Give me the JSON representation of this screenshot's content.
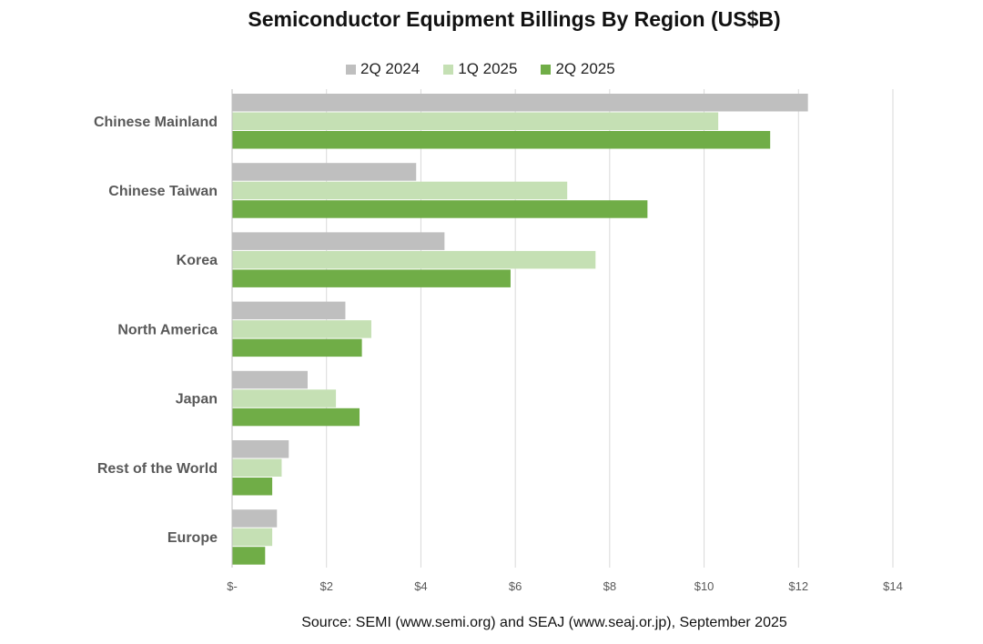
{
  "chart_data": {
    "type": "bar",
    "orientation": "horizontal",
    "title": "Semiconductor Equipment Billings By Region (US$B)",
    "categories": [
      "Chinese Mainland",
      "Chinese Taiwan",
      "Korea",
      "North America",
      "Japan",
      "Rest of the World",
      "Europe"
    ],
    "series": [
      {
        "name": "2Q 2024",
        "color": "#bfbfbf",
        "values": [
          12.2,
          3.9,
          4.5,
          2.4,
          1.6,
          1.2,
          0.95
        ]
      },
      {
        "name": "1Q 2025",
        "color": "#c5e0b4",
        "values": [
          10.3,
          7.1,
          7.7,
          2.95,
          2.2,
          1.05,
          0.85
        ]
      },
      {
        "name": "2Q 2025",
        "color": "#70ad47",
        "values": [
          11.4,
          8.8,
          5.9,
          2.75,
          2.7,
          0.85,
          0.7
        ]
      }
    ],
    "xlim": [
      0,
      14
    ],
    "xticks": [
      0,
      2,
      4,
      6,
      8,
      10,
      12,
      14
    ],
    "xtick_labels": [
      "$-",
      "$2",
      "$4",
      "$6",
      "$8",
      "$10",
      "$12",
      "$14"
    ],
    "grid": "vertical",
    "legend_position": "top"
  },
  "source": "Source: SEMI (www.semi.org) and SEAJ (www.seaj.or.jp), September 2025"
}
